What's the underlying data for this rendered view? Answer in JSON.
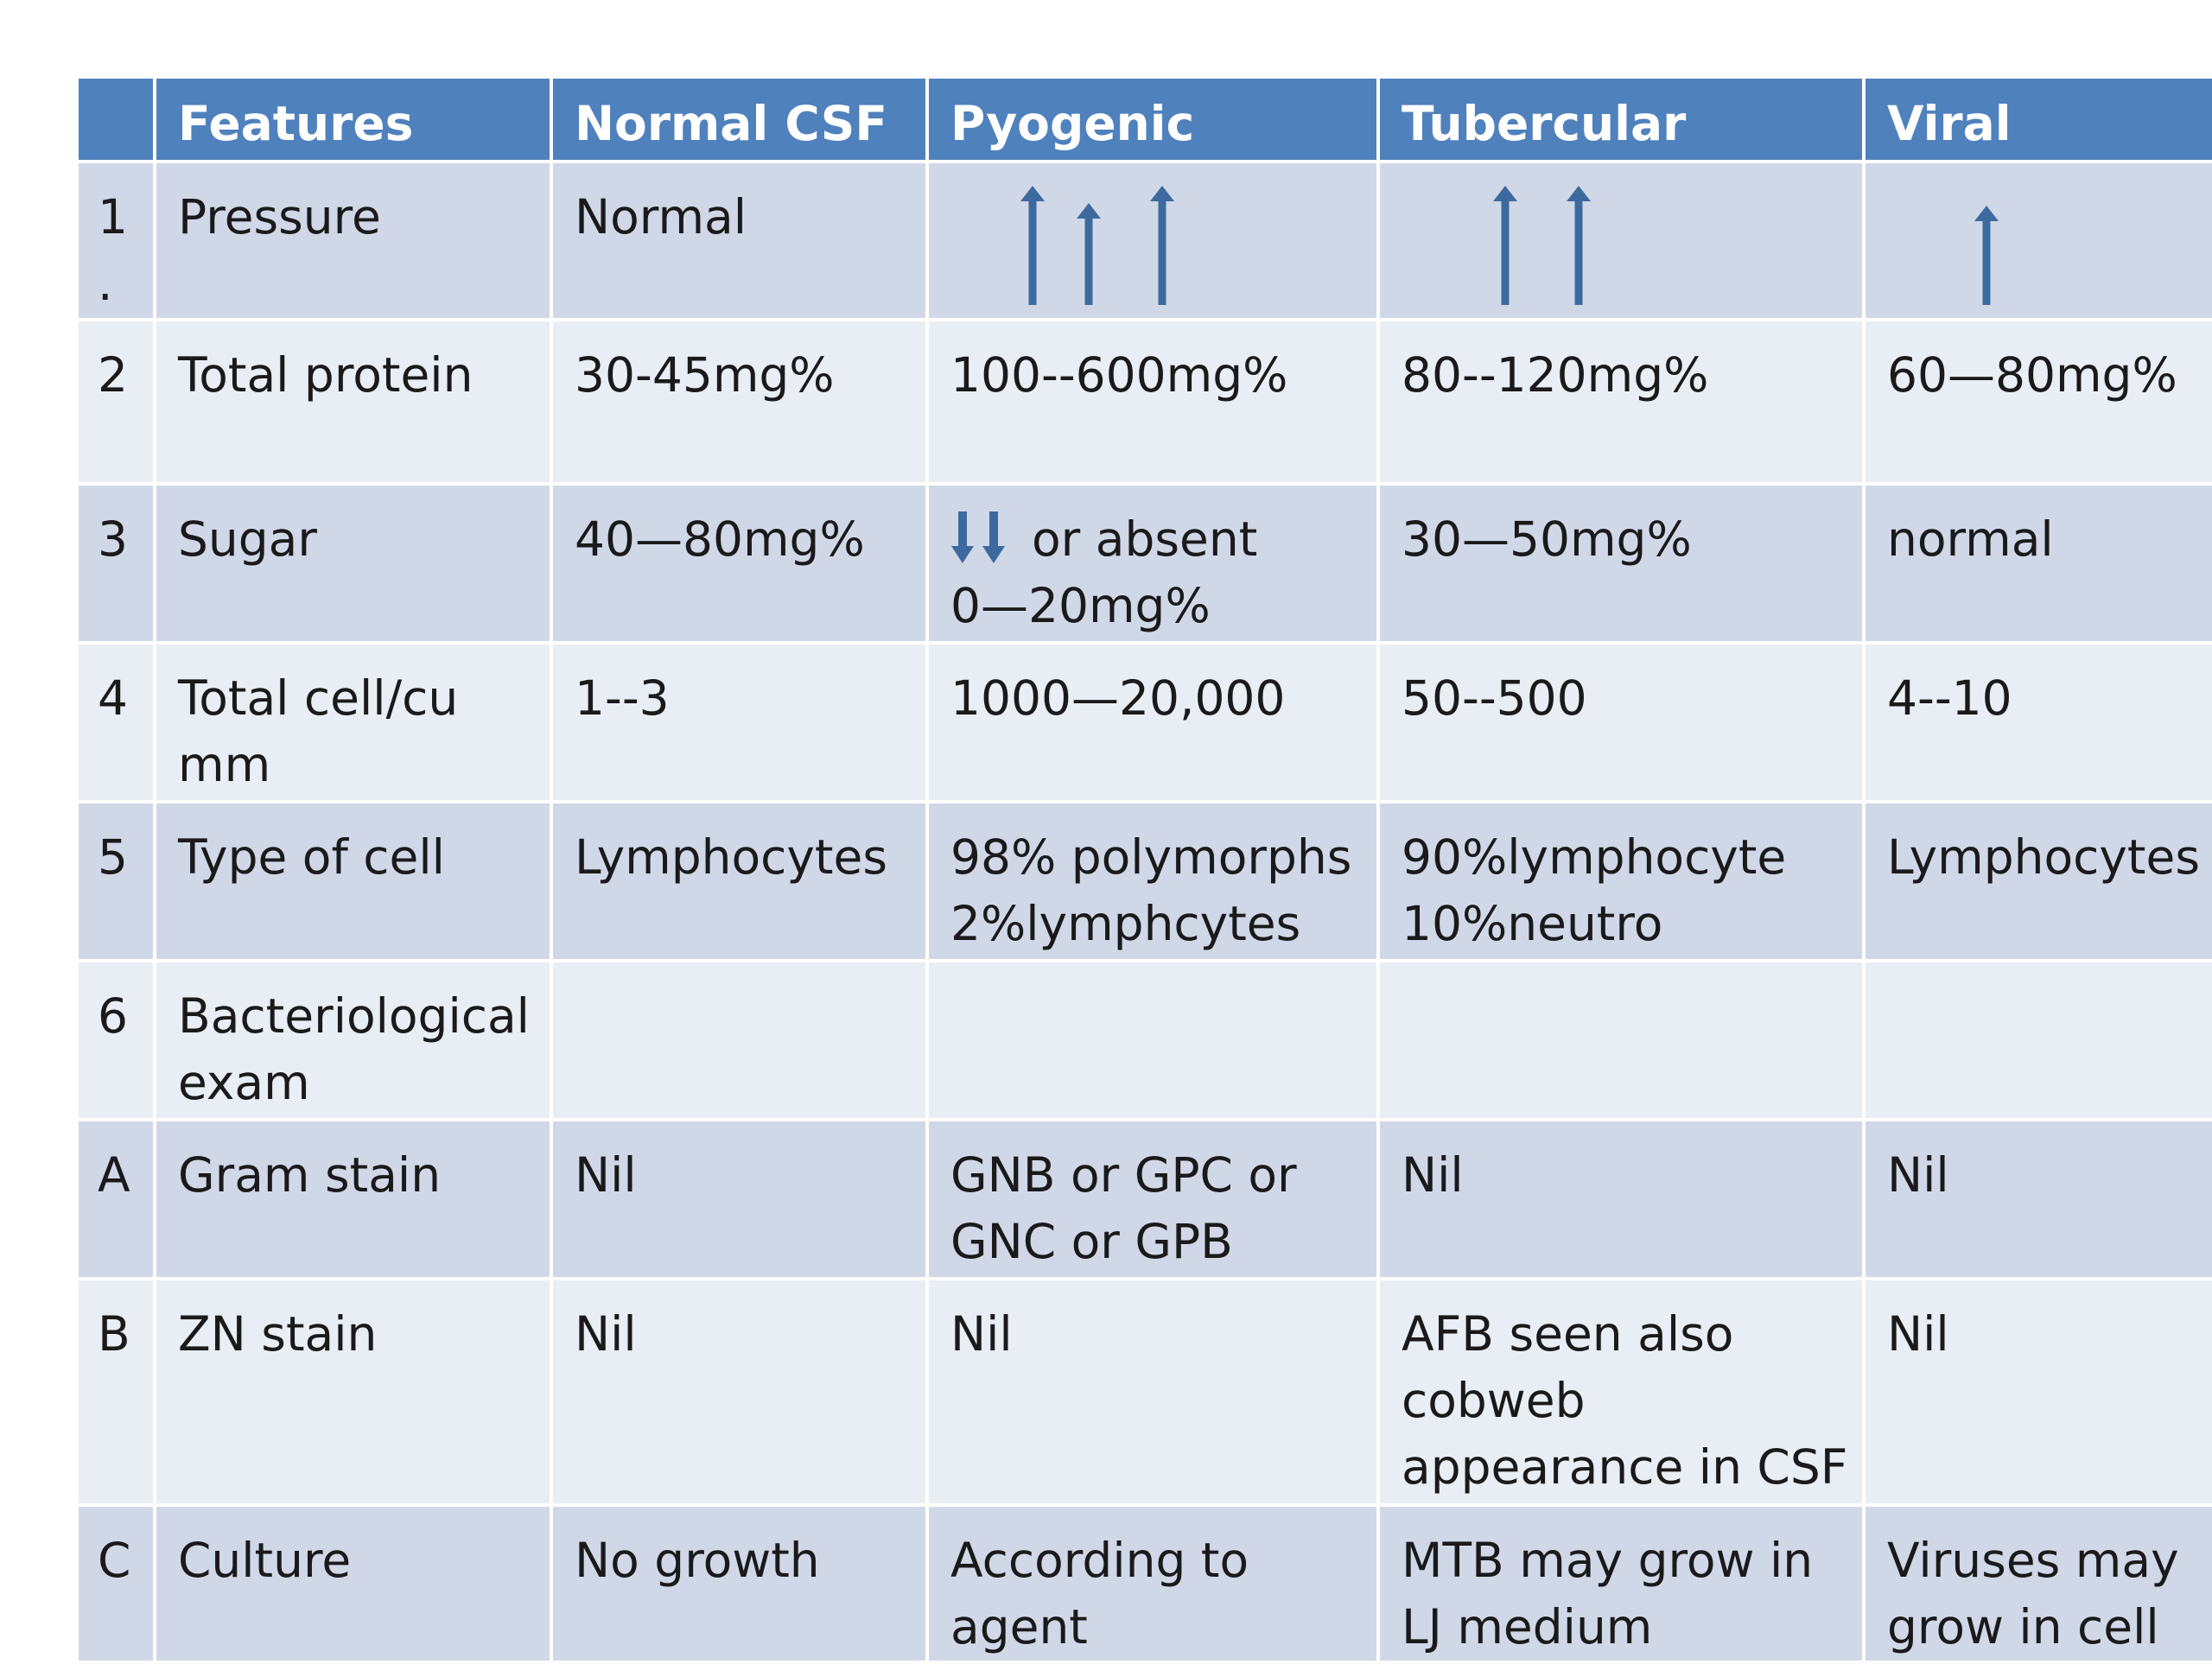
{
  "header": {
    "index": "",
    "features": "Features",
    "normal": "Normal  CSF",
    "pyogenic": "Pyogenic",
    "tubercular": "Tubercular",
    "viral": "Viral"
  },
  "rows": [
    {
      "index": "1\n.",
      "feature": "Pressure",
      "normal": "Normal",
      "pyogenic": {
        "arrows": "up",
        "count": 3
      },
      "tubercular": {
        "arrows": "up",
        "count": 2
      },
      "viral": {
        "arrows": "up",
        "count": 1
      }
    },
    {
      "index": "2",
      "feature": "Total protein",
      "normal": "30-45mg%",
      "pyogenic": "100--600mg%",
      "tubercular": "80--120mg%",
      "viral": "60—80mg%"
    },
    {
      "index": "3",
      "feature": "Sugar",
      "normal": "40—80mg%",
      "pyogenic": {
        "arrows": "down",
        "count": 2,
        "text_after_arrows": "or absent",
        "line2": "0—20mg%"
      },
      "tubercular": "30—50mg%",
      "viral": "normal"
    },
    {
      "index": "4",
      "feature": "Total cell/cu\nmm",
      "normal": "1--3",
      "pyogenic": "1000—20,000",
      "tubercular": "50--500",
      "viral": "4--10"
    },
    {
      "index": "5",
      "feature": "Type of cell",
      "normal": "Lymphocytes",
      "pyogenic": "98% polymorphs\n2%lymphcytes",
      "tubercular": "90%lymphocyte\n10%neutro",
      "viral": "Lymphocytes"
    },
    {
      "index": "6",
      "feature": "Bacteriological\nexam",
      "normal": "",
      "pyogenic": "",
      "tubercular": "",
      "viral": ""
    },
    {
      "index": "A",
      "feature": "Gram stain",
      "normal": "Nil",
      "pyogenic": "GNB or GPC or\nGNC or GPB",
      "tubercular": "Nil",
      "viral": "Nil"
    },
    {
      "index": "B",
      "feature": "ZN stain",
      "normal": "Nil",
      "pyogenic": "Nil",
      "tubercular": "AFB seen also\ncobweb\nappearance in CSF",
      "viral": "Nil"
    },
    {
      "index": "C",
      "feature": "Culture",
      "normal": "No growth",
      "pyogenic": "According to\nagent",
      "tubercular": "MTB may grow in\nLJ medium",
      "viral": "Viruses may\ngrow in cell"
    }
  ],
  "colors": {
    "header_bg": "#4f81bd",
    "row_dark": "#d0d8e8",
    "row_light": "#e9edf4",
    "arrow": "#3d6a9e"
  },
  "icons": {
    "up": "arrow-up-icon",
    "down": "arrow-down-icon"
  }
}
